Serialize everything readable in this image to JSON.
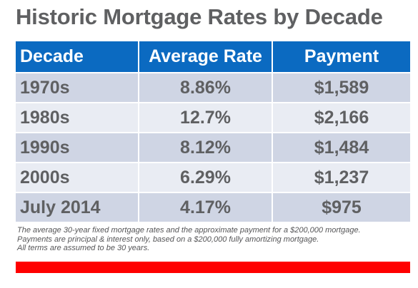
{
  "title": "Historic Mortgage Rates by Decade",
  "chart_data": {
    "type": "table",
    "columns": [
      "Decade",
      "Average Rate",
      "Payment"
    ],
    "rows": [
      [
        "1970s",
        "8.86%",
        "$1,589"
      ],
      [
        "1980s",
        "12.7%",
        "$2,166"
      ],
      [
        "1990s",
        "8.12%",
        "$1,484"
      ],
      [
        "2000s",
        "6.29%",
        "$1,237"
      ],
      [
        "July 2014",
        "4.17%",
        "$975"
      ]
    ]
  },
  "footnotes": [
    "The average 30-year fixed mortgage rates and the approximate payment for a $200,000 mortgage.",
    "Payments are principal & interest only, based on a $200,000 fully amortizing mortgage.",
    "All terms are assumed to be 30 years."
  ],
  "colors": {
    "header_bg": "#0b6ac1",
    "row_odd": "#cfd5e4",
    "row_even": "#e9ecf3",
    "text": "#5f6062",
    "accent_bar": "#ff0000"
  }
}
